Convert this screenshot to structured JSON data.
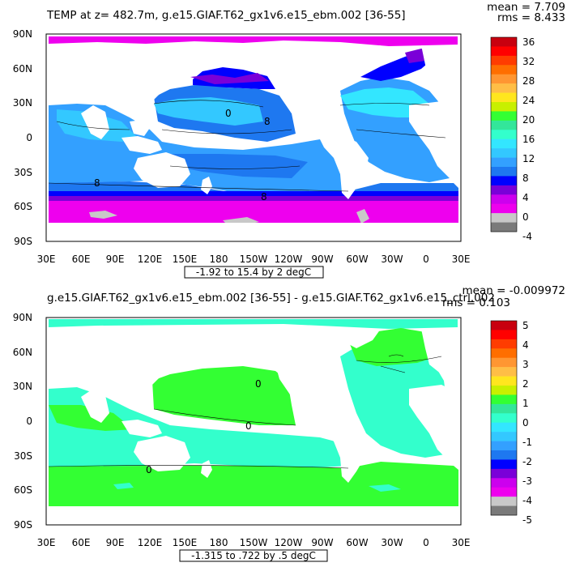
{
  "panels": [
    {
      "title": "TEMP at z= 482.7m, g.e15.GIAF.T62_gx1v6.e15_ebm.002 [36-55]",
      "mean": "mean = 7.709",
      "rms": "rms = 8.433",
      "range": "-1.92 to 15.4 by 2 degC",
      "lat_labels": [
        "90N",
        "60N",
        "30N",
        "0",
        "30S",
        "60S",
        "90S"
      ],
      "lon_labels": [
        "30E",
        "60E",
        "90E",
        "120E",
        "150E",
        "180",
        "150W",
        "120W",
        "90W",
        "60W",
        "30W",
        "0",
        "30E"
      ],
      "colorbar": {
        "labels": [
          "36",
          "32",
          "28",
          "24",
          "20",
          "16",
          "12",
          "8",
          "4",
          "0",
          "-4"
        ],
        "colors": [
          "#c8000f",
          "#ff0000",
          "#ff3c00",
          "#ff6e00",
          "#ff9632",
          "#ffbe46",
          "#ffe61e",
          "#c8f000",
          "#33ff33",
          "#33e69a",
          "#33ffcc",
          "#33e6ff",
          "#33c8ff",
          "#33a0ff",
          "#1e78f0",
          "#0000ff",
          "#7a00d8",
          "#cc00ee",
          "#ee00ee",
          "#c8c8c8",
          "#7a7a7a"
        ]
      },
      "map_colors": {
        "polar": "#ee00ee",
        "band_deep": "#cc00ee",
        "band_mid": "#0000ff",
        "cool": "#1e78f0",
        "mild": "#33a0ff",
        "warm": "#33c8ff",
        "hot": "#33e6ff",
        "ice": "#c8c8c8"
      },
      "contour_labels": [
        "8",
        "8",
        "8",
        "0"
      ]
    },
    {
      "title": "g.e15.GIAF.T62_gx1v6.e15_ebm.002 [36-55] - g.e15.GIAF.T62_gx1v6.e15_ctrl.002",
      "mean": "mean = -0.009972",
      "rms": "rms = 0.103",
      "range": "-1.315 to .722 by .5 degC",
      "lat_labels": [
        "90N",
        "60N",
        "30N",
        "0",
        "30S",
        "60S",
        "90S"
      ],
      "lon_labels": [
        "30E",
        "60E",
        "90E",
        "120E",
        "150E",
        "180",
        "150W",
        "120W",
        "90W",
        "60W",
        "30W",
        "0",
        "30E"
      ],
      "colorbar": {
        "labels": [
          "5",
          "4",
          "3",
          "2",
          "1",
          "0",
          "-1",
          "-2",
          "-3",
          "-4",
          "-5"
        ],
        "colors": [
          "#c8000f",
          "#ff0000",
          "#ff3c00",
          "#ff6e00",
          "#ff9632",
          "#ffbe46",
          "#ffe61e",
          "#c8f000",
          "#33ff33",
          "#33e69a",
          "#33ffcc",
          "#33e6ff",
          "#33c8ff",
          "#33a0ff",
          "#1e78f0",
          "#0000ff",
          "#7a00d8",
          "#cc00ee",
          "#ee00ee",
          "#c8c8c8",
          "#7a7a7a"
        ]
      },
      "map_colors": {
        "pos": "#33ff33",
        "neg": "#33ffcc",
        "zero": "#33e69a"
      },
      "contour_labels": [
        "0",
        "0",
        "0"
      ]
    }
  ]
}
